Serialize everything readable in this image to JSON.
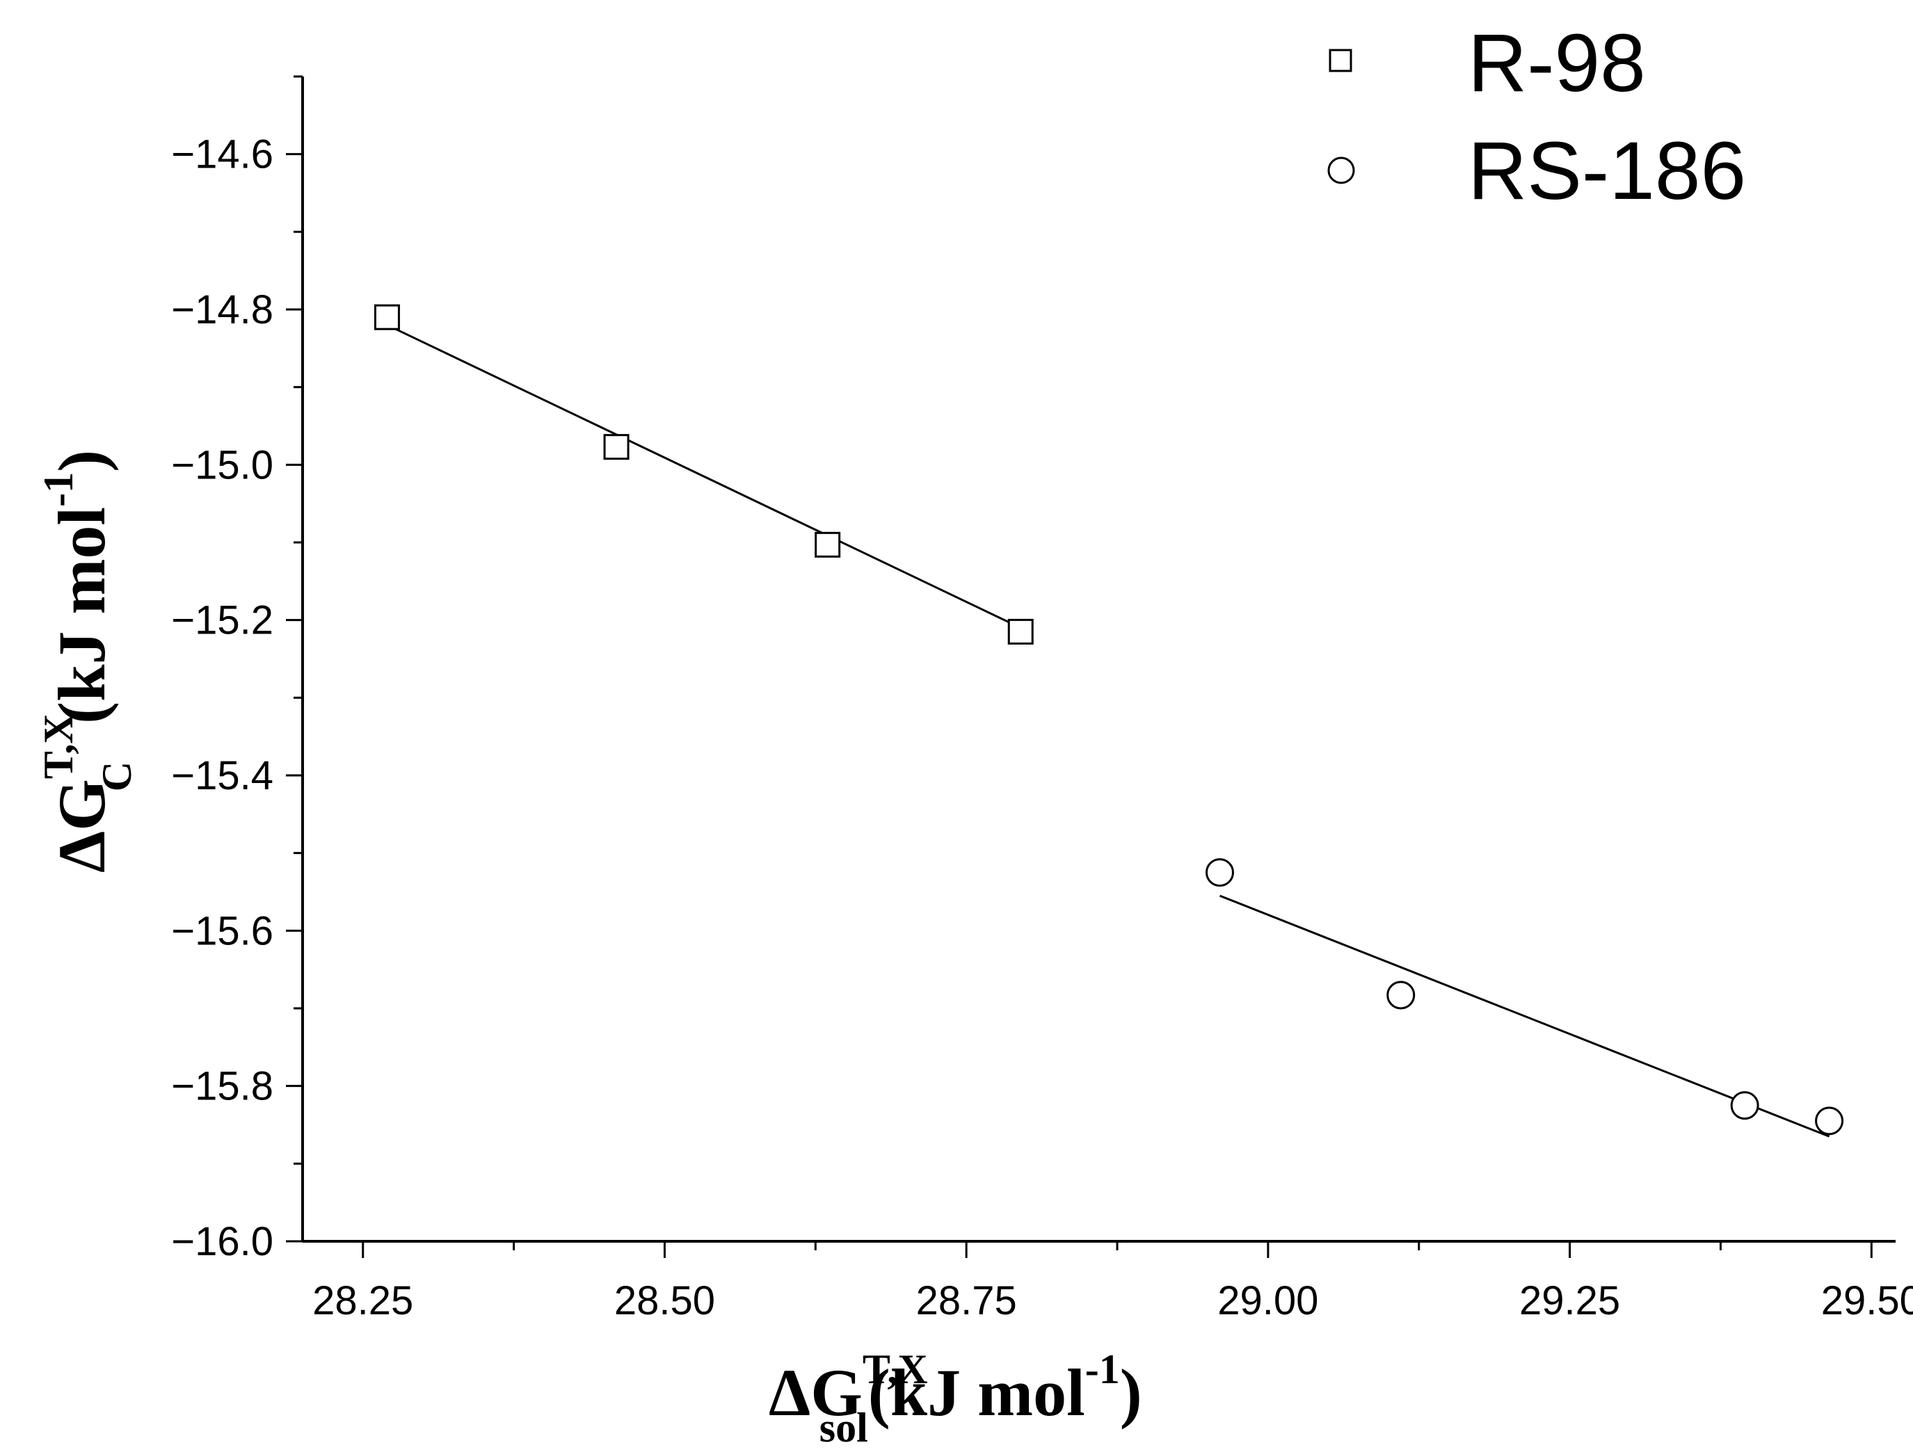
{
  "chart_data": {
    "type": "scatter",
    "title": "",
    "x_axis": {
      "range": [
        28.2,
        29.52
      ],
      "ticks": [
        28.25,
        28.5,
        28.75,
        29.0,
        29.25,
        29.5
      ],
      "tick_labels": [
        "28.25",
        "28.50",
        "28.75",
        "29.00",
        "29.25",
        "29.50"
      ],
      "label_main": "ΔG",
      "label_sup": "T,X",
      "label_sub": "sol",
      "label_unit_open": "(kJ mol",
      "label_unit_exp": "-1",
      "label_unit_close": ")"
    },
    "y_axis": {
      "range": [
        -16.0,
        -14.5
      ],
      "ticks": [
        -14.6,
        -14.8,
        -15.0,
        -15.2,
        -15.4,
        -15.6,
        -15.8,
        -16.0
      ],
      "tick_labels": [
        "−14.6",
        "−14.8",
        "−15.0",
        "−15.2",
        "−15.4",
        "−15.6",
        "−15.8",
        "−16.0"
      ],
      "label_main": "ΔG",
      "label_sup": "T,X",
      "label_sub": "C",
      "label_unit_open": "(kJ mol",
      "label_unit_exp": "-1",
      "label_unit_close": ")"
    },
    "series": [
      {
        "name": "R-98",
        "marker": "square",
        "x": [
          28.27,
          28.46,
          28.635,
          28.795
        ],
        "y": [
          -14.81,
          -14.977,
          -15.103,
          -15.215
        ],
        "fit": {
          "x": [
            28.27,
            28.795
          ],
          "y": [
            -14.82,
            -15.21
          ]
        }
      },
      {
        "name": "RS-186",
        "marker": "circle",
        "x": [
          28.96,
          29.11,
          29.395,
          29.465
        ],
        "y": [
          -15.525,
          -15.683,
          -15.825,
          -15.845
        ],
        "fit": {
          "x": [
            28.96,
            29.465
          ],
          "y": [
            -15.555,
            -15.865
          ]
        }
      }
    ],
    "legend": {
      "position": "top-right",
      "entries": [
        "R-98",
        "RS-186"
      ]
    },
    "grid": false
  }
}
